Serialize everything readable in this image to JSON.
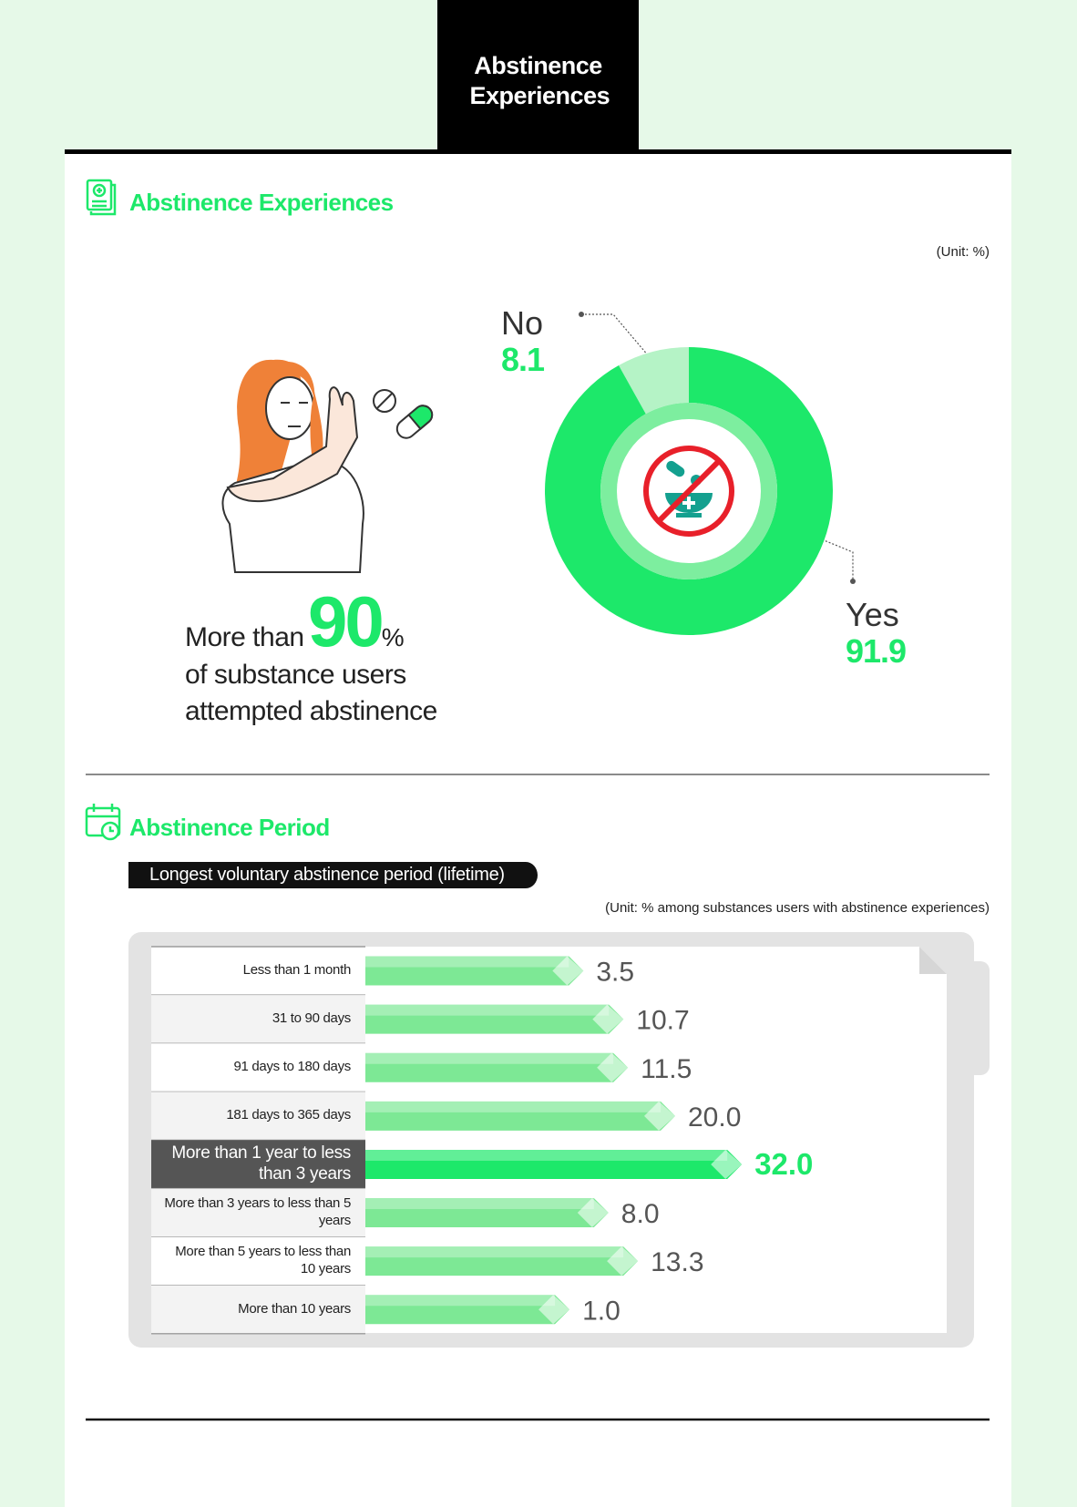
{
  "header": {
    "title": "Abstinence Experiences"
  },
  "chart_data": [
    {
      "type": "pie",
      "title": "Abstinence Experiences",
      "unit_note": "(Unit: %)",
      "categories": [
        "No",
        "Yes"
      ],
      "values": [
        8.1,
        91.9
      ],
      "colors": [
        "#b5f3c6",
        "#1de86a"
      ]
    },
    {
      "type": "bar",
      "title": "Abstinence Period",
      "subtitle": "Longest voluntary abstinence period (lifetime)",
      "unit_note": "(Unit: % among substances users with abstinence experiences)",
      "categories": [
        "Less than 1 month",
        "31 to 90 days",
        "91 days to 180 days",
        "181 days to 365 days",
        "More than 1 year to less than 3 years",
        "More than 3 years to less than 5 years",
        "More than 5 years to less than 10 years",
        "More than 10 years"
      ],
      "values": [
        3.5,
        10.7,
        11.5,
        20.0,
        32.0,
        8.0,
        13.3,
        1.0
      ],
      "value_labels": [
        "3.5",
        "10.7",
        "11.5",
        "20.0",
        "32.0",
        "8.0",
        "13.3",
        "1.0"
      ],
      "color": "#7de895",
      "highlight_color": "#1de86a",
      "highlight_index": 4
    }
  ],
  "callout": {
    "lead": "More than",
    "figure": "90",
    "unit": "%",
    "lines": [
      "of substance users",
      "attempted abstinence"
    ]
  }
}
